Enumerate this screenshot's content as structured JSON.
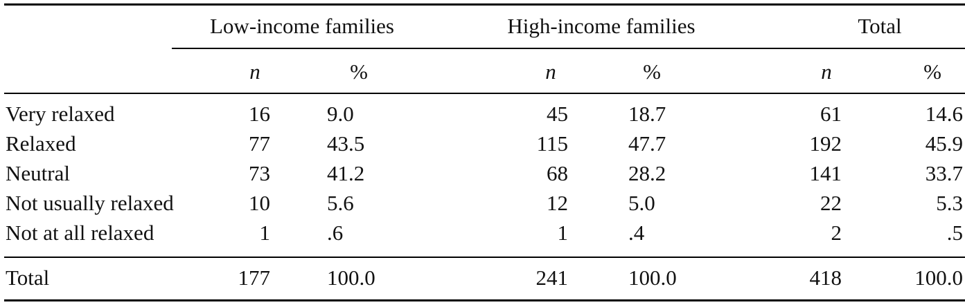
{
  "header": {
    "groups": [
      "Low-income families",
      "High-income families",
      "Total"
    ],
    "subheads": [
      "n",
      "%",
      "n",
      "%",
      "n",
      "%"
    ]
  },
  "rows": [
    {
      "label": "Very relaxed",
      "low_n": "16",
      "low_p": "9.0",
      "high_n": "45",
      "high_p": "18.7",
      "total_n": "61",
      "total_p": "14.6"
    },
    {
      "label": "Relaxed",
      "low_n": "77",
      "low_p": "43.5",
      "high_n": "115",
      "high_p": "47.7",
      "total_n": "192",
      "total_p": "45.9"
    },
    {
      "label": "Neutral",
      "low_n": "73",
      "low_p": "41.2",
      "high_n": "68",
      "high_p": "28.2",
      "total_n": "141",
      "total_p": "33.7"
    },
    {
      "label": "Not usually relaxed",
      "low_n": "10",
      "low_p": "5.6",
      "high_n": "12",
      "high_p": "5.0",
      "total_n": "22",
      "total_p": "5.3"
    },
    {
      "label": "Not at all relaxed",
      "low_n": "1",
      "low_p": ".6",
      "high_n": "1",
      "high_p": ".4",
      "total_n": "2",
      "total_p": ".5"
    }
  ],
  "total_row": {
    "label": "Total",
    "low_n": "177",
    "low_p": "100.0",
    "high_n": "241",
    "high_p": "100.0",
    "total_n": "418",
    "total_p": "100.0"
  }
}
